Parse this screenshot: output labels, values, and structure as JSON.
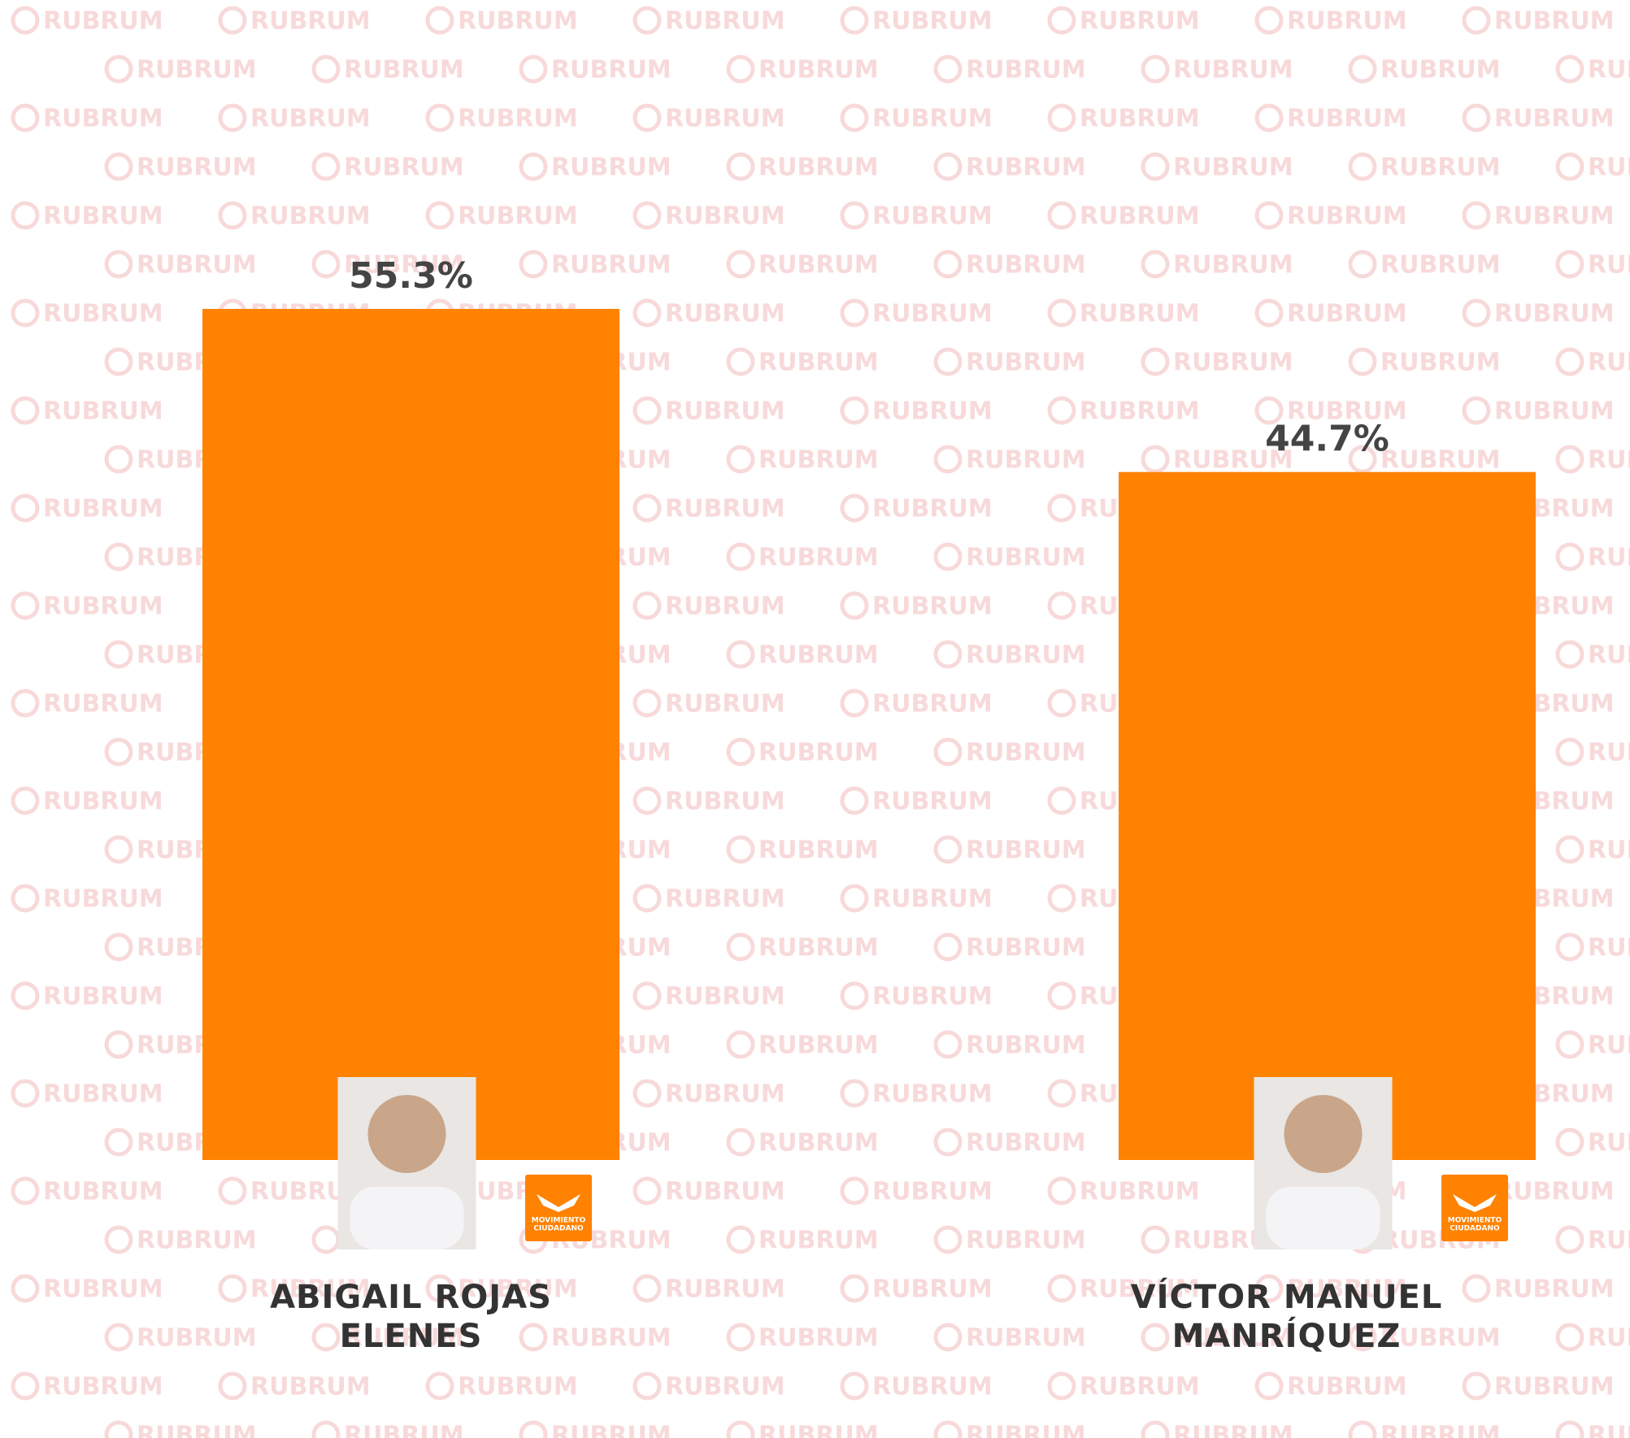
{
  "chart_data": {
    "type": "bar",
    "categories": [
      "ABIGAIL ROJAS ELENES",
      "VÍCTOR MANUEL MANRÍQUEZ"
    ],
    "values": [
      55.3,
      44.7
    ],
    "value_labels": [
      "55.3%",
      "44.7%"
    ],
    "color": "#ff8200",
    "ylim": [
      0,
      60
    ],
    "grid": false
  },
  "watermark": "RUBRUM",
  "party_logo": [
    "MOVIMIENTO",
    "CIUDADANO"
  ]
}
